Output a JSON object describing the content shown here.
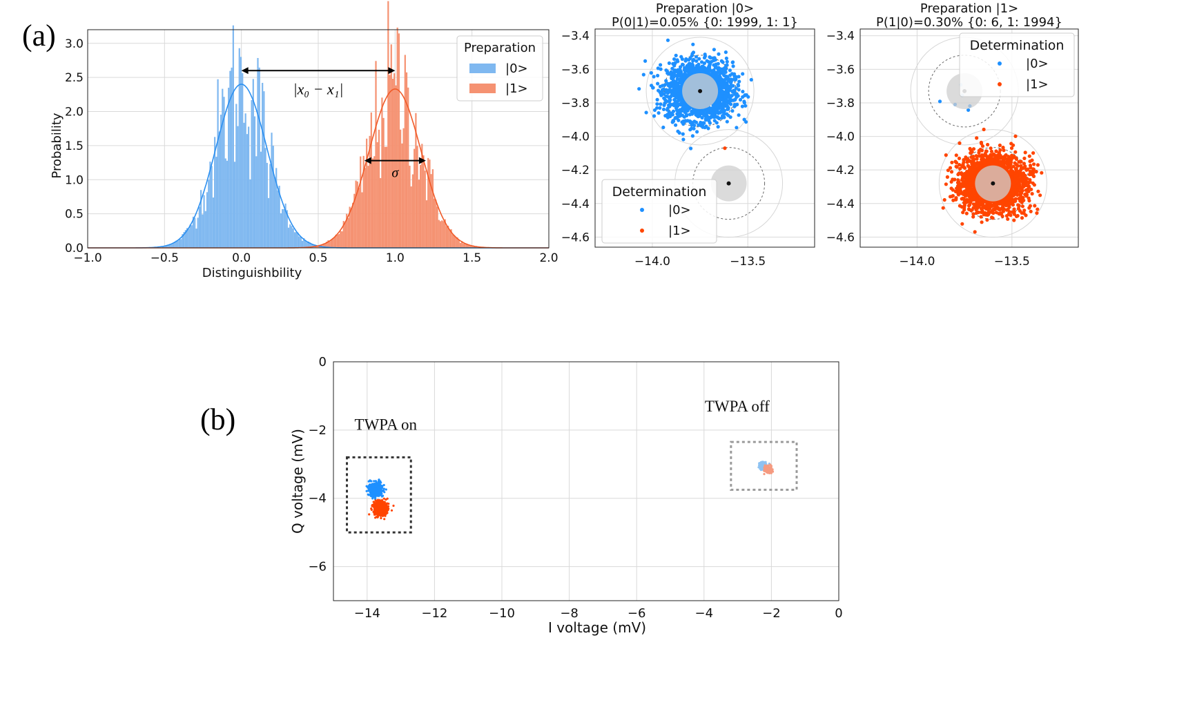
{
  "figure": {
    "panel_a_label": "(a)",
    "panel_b_label": "(b)"
  },
  "colors": {
    "state0": "#1e90ff",
    "state1": "#ff4500",
    "hist0": "#7fb8f0",
    "hist1": "#f59272",
    "fit0": "#2b8ff0",
    "fit1": "#f05a28",
    "grid": "#d9d9d9",
    "disc": "#cfcfcf",
    "box_on": "#333333",
    "box_off": "#9a9a9a"
  },
  "chart_data": [
    {
      "id": "histogram",
      "type": "bar",
      "title": "",
      "xlabel": "Distinguishbility",
      "ylabel": "Probability",
      "xlim": [
        -1.0,
        2.0
      ],
      "ylim": [
        0,
        3.2
      ],
      "xticks": [
        "−1.0",
        "−0.5",
        "0.0",
        "0.5",
        "1.0",
        "1.5",
        "2.0"
      ],
      "yticks": [
        "0.0",
        "0.5",
        "1.0",
        "1.5",
        "2.0",
        "2.5",
        "3.0"
      ],
      "grid": true,
      "legend": {
        "title": "Preparation",
        "position": "top-right"
      },
      "series": [
        {
          "name": "|0>",
          "mean": 0.0,
          "sigma": 0.167,
          "peak": 2.4
        },
        {
          "name": "|1>",
          "mean": 1.0,
          "sigma": 0.17,
          "peak": 2.33
        }
      ],
      "annotations": [
        {
          "text": "|x₀ − x₁|",
          "from": 0.0,
          "to": 1.0,
          "y": 2.6
        },
        {
          "text": "σ",
          "from": 0.8,
          "to": 1.2,
          "y": 1.28
        }
      ]
    },
    {
      "id": "scatter_prep0",
      "type": "scatter",
      "title": "Preparation |0>",
      "subtitle": "P(0|1)=0.05%  {0: 1999, 1: 1}",
      "xlim": [
        -14.3,
        -13.15
      ],
      "ylim": [
        -4.66,
        -3.36
      ],
      "xticks": [
        "−14.0",
        "−13.5"
      ],
      "yticks": [
        "−3.4",
        "−3.6",
        "−3.8",
        "−4.0",
        "−4.2",
        "−4.4",
        "−4.6"
      ],
      "grid": true,
      "legend": {
        "title": "Determination",
        "position": "bottom-left"
      },
      "series": [
        {
          "name": "|0>",
          "count": 1999,
          "center": [
            -13.75,
            -3.73
          ],
          "spread": 0.1
        },
        {
          "name": "|1>",
          "count": 1,
          "center": [
            -13.62,
            -4.07
          ],
          "spread": 0.0
        }
      ],
      "centroids": [
        [
          -13.75,
          -3.73
        ],
        [
          -13.6,
          -4.28
        ]
      ]
    },
    {
      "id": "scatter_prep1",
      "type": "scatter",
      "title": "Preparation |1>",
      "subtitle": "P(1|0)=0.30%  {0: 6, 1: 1994}",
      "xlim": [
        -14.3,
        -13.15
      ],
      "ylim": [
        -4.66,
        -3.36
      ],
      "xticks": [
        "−14.0",
        "−13.5"
      ],
      "yticks": [
        "−3.4",
        "−3.6",
        "−3.8",
        "−4.0",
        "−4.2",
        "−4.4",
        "−4.6"
      ],
      "grid": true,
      "legend": {
        "title": "Determination",
        "position": "top-right"
      },
      "series": [
        {
          "name": "|0>",
          "count": 6,
          "center": [
            -13.75,
            -3.73
          ],
          "spread": 0.0
        },
        {
          "name": "|1>",
          "count": 1994,
          "center": [
            -13.6,
            -4.28
          ],
          "spread": 0.1
        }
      ],
      "centroids": [
        [
          -13.75,
          -3.73
        ],
        [
          -13.6,
          -4.28
        ]
      ]
    },
    {
      "id": "iq_plane",
      "type": "scatter",
      "title": "",
      "xlabel": "I voltage (mV)",
      "ylabel": "Q voltage (mV)",
      "xlim": [
        -15,
        0
      ],
      "ylim": [
        -7,
        0
      ],
      "xticks": [
        "−14",
        "−12",
        "−10",
        "−8",
        "−6",
        "−4",
        "−2",
        "0"
      ],
      "yticks": [
        "0",
        "−2",
        "−4",
        "−6"
      ],
      "grid": true,
      "groups": [
        {
          "label": "TWPA on",
          "clusters": [
            [
              -13.75,
              -3.75
            ],
            [
              -13.6,
              -4.3
            ]
          ],
          "box": [
            [
              -14.6,
              -2.8
            ],
            [
              -12.7,
              -5.0
            ]
          ]
        },
        {
          "label": "TWPA off",
          "clusters": [
            [
              -2.25,
              -3.05
            ],
            [
              -2.1,
              -3.15
            ]
          ],
          "box": [
            [
              -3.2,
              -2.35
            ],
            [
              -1.25,
              -3.75
            ]
          ]
        }
      ]
    }
  ]
}
